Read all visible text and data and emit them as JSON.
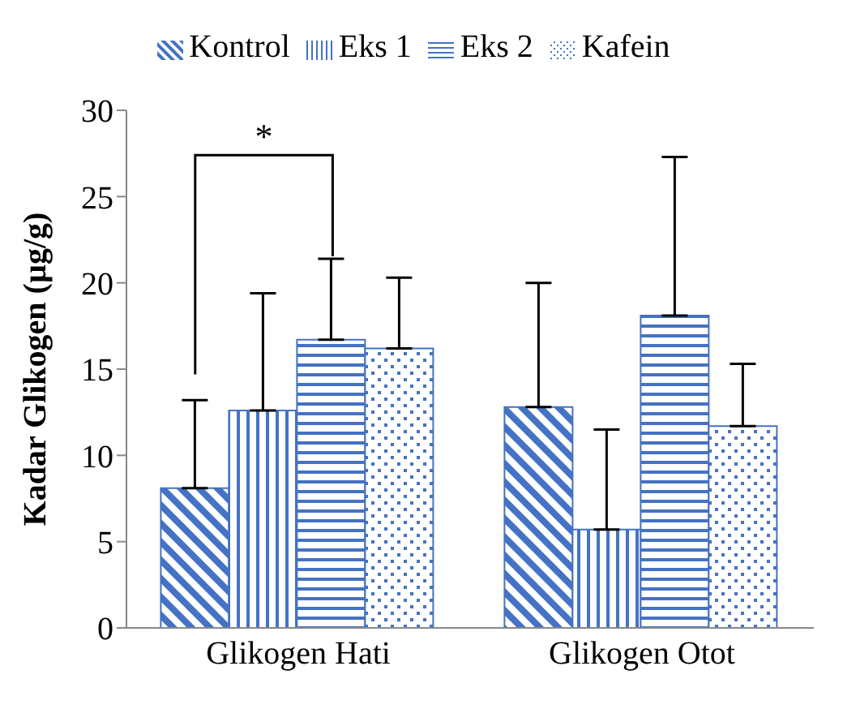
{
  "chart_data": {
    "type": "bar",
    "ylabel": "Kadar Glikogen (µg/g)",
    "categories": [
      "Glikogen Hati",
      "Glikogen Otot"
    ],
    "series": [
      {
        "name": "Kontrol",
        "color": "#4472c4",
        "values": [
          8.1,
          12.8
        ],
        "errors": [
          [
            8.1,
            13.2
          ],
          [
            12.8,
            20.0
          ]
        ]
      },
      {
        "name": "Eks 1",
        "color": "#4472c4",
        "values": [
          12.6,
          5.7
        ],
        "errors": [
          [
            12.6,
            19.4
          ],
          [
            5.7,
            11.5
          ]
        ]
      },
      {
        "name": "Eks 2",
        "color": "#4472c4",
        "values": [
          16.7,
          18.1
        ],
        "errors": [
          [
            16.7,
            21.4
          ],
          [
            18.1,
            27.3
          ]
        ]
      },
      {
        "name": "Kafein",
        "color": "#4472c4",
        "values": [
          16.2,
          11.7
        ],
        "errors": [
          [
            16.2,
            20.3
          ],
          [
            11.7,
            15.3
          ]
        ]
      }
    ],
    "ylim": [
      0,
      30
    ],
    "yticks": [
      0,
      5,
      10,
      15,
      20,
      25,
      30
    ],
    "grid": false,
    "legend": "top",
    "annotations": [
      "*"
    ]
  }
}
